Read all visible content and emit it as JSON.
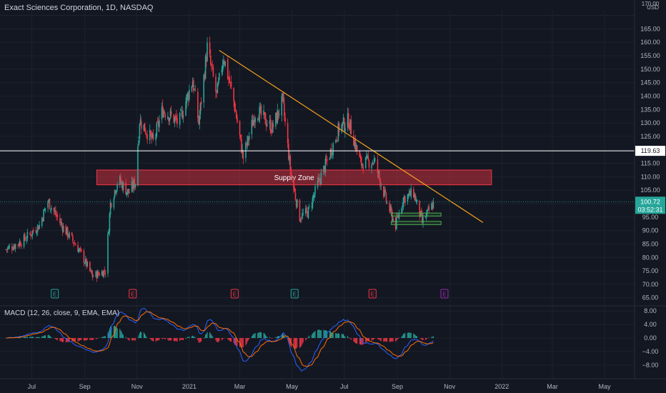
{
  "chart_data": [
    {
      "type": "candlestick",
      "title": "Exact Sciences Corporation, 1D, NASDAQ",
      "currency": "USD",
      "y_ticks": [
        65,
        70,
        75,
        80,
        85,
        90,
        95,
        100,
        105,
        110,
        115,
        120,
        125,
        130,
        135,
        140,
        145,
        150,
        155,
        160,
        165,
        170
      ],
      "ylim": [
        62,
        172
      ],
      "x_labels": [
        "Jul",
        "Sep",
        "Nov",
        "2021",
        "Mar",
        "May",
        "Jul",
        "Sep",
        "Nov",
        "2022",
        "Mar",
        "May"
      ],
      "approx_daily_close": {
        "start": "2020-06-01",
        "end": "2021-10-13",
        "anchors": [
          [
            "2020-06-01",
            83
          ],
          [
            "2020-06-20",
            86
          ],
          [
            "2020-07-10",
            92
          ],
          [
            "2020-07-20",
            101
          ],
          [
            "2020-08-05",
            92
          ],
          [
            "2020-08-25",
            83
          ],
          [
            "2020-09-10",
            73
          ],
          [
            "2020-09-25",
            75
          ],
          [
            "2020-10-01",
            100
          ],
          [
            "2020-10-10",
            109
          ],
          [
            "2020-10-22",
            104
          ],
          [
            "2020-10-30",
            108
          ],
          [
            "2020-11-04",
            131
          ],
          [
            "2020-11-20",
            123
          ],
          [
            "2020-12-01",
            135
          ],
          [
            "2020-12-20",
            130
          ],
          [
            "2021-01-05",
            146
          ],
          [
            "2021-01-12",
            130
          ],
          [
            "2021-01-22",
            158
          ],
          [
            "2021-02-02",
            140
          ],
          [
            "2021-02-10",
            155
          ],
          [
            "2021-02-22",
            138
          ],
          [
            "2021-03-05",
            117
          ],
          [
            "2021-03-20",
            135
          ],
          [
            "2021-04-08",
            128
          ],
          [
            "2021-04-20",
            138
          ],
          [
            "2021-04-30",
            110
          ],
          [
            "2021-05-10",
            95
          ],
          [
            "2021-05-20",
            97
          ],
          [
            "2021-06-01",
            108
          ],
          [
            "2021-06-10",
            115
          ],
          [
            "2021-06-25",
            128
          ],
          [
            "2021-07-06",
            131
          ],
          [
            "2021-07-20",
            115
          ],
          [
            "2021-08-05",
            116
          ],
          [
            "2021-08-20",
            100
          ],
          [
            "2021-08-30",
            92
          ],
          [
            "2021-09-08",
            102
          ],
          [
            "2021-09-20",
            104
          ],
          [
            "2021-09-30",
            93
          ],
          [
            "2021-10-13",
            100
          ]
        ]
      },
      "price_lines": [
        {
          "label": "119.63",
          "value": 119.63,
          "color": "#ffffff"
        },
        {
          "label": "100.72",
          "sublabel": "03:52:31",
          "value": 100.72,
          "color": "#26a69a"
        }
      ],
      "annotations": [
        {
          "kind": "zone",
          "label": "Supply Zone",
          "from_date": "2020-09-15",
          "to_date": "2021-12-20",
          "low": 107,
          "high": 112.5,
          "color": "#f23645"
        },
        {
          "kind": "trendline",
          "from_date": "2021-02-05",
          "from_value": 157,
          "to_date": "2021-12-10",
          "to_value": 93,
          "color": "#f7a21b"
        },
        {
          "kind": "box",
          "from_date": "2021-08-25",
          "to_date": "2021-10-22",
          "low": 95.4,
          "high": 96.5,
          "color": "#4caf50"
        },
        {
          "kind": "box",
          "from_date": "2021-08-25",
          "to_date": "2021-10-22",
          "low": 92.2,
          "high": 93.4,
          "color": "#4caf50"
        }
      ],
      "earnings_markers": [
        {
          "date": "2020-07-28",
          "label": "E",
          "color": "#26a69a"
        },
        {
          "date": "2020-10-27",
          "label": "E",
          "color": "#f23645"
        },
        {
          "date": "2021-02-23",
          "label": "E",
          "color": "#f23645"
        },
        {
          "date": "2021-05-04",
          "label": "E",
          "color": "#26a69a"
        },
        {
          "date": "2021-08-03",
          "label": "E",
          "color": "#f23645"
        },
        {
          "date": "2021-10-26",
          "label": "E",
          "color": "#9c27b0"
        }
      ]
    },
    {
      "type": "macd",
      "title": "MACD (12, 26, close, 9, EMA, EMA)",
      "y_ticks": [
        8,
        4,
        0,
        -4,
        -8
      ],
      "ylim": [
        -12,
        9.5
      ],
      "macd_color": "#2962ff",
      "signal_color": "#ff6d00",
      "hist_up_color": "#26a69a",
      "hist_down_color": "#f23645"
    }
  ]
}
